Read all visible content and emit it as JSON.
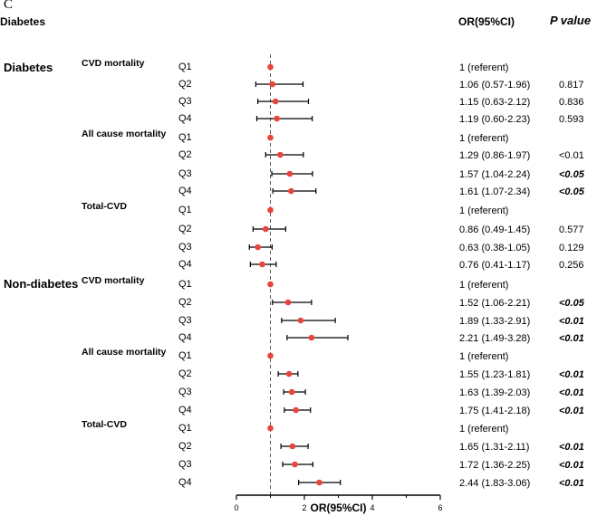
{
  "panel_letter": "C",
  "header": {
    "left_title": "Diabetes",
    "or_column": "OR(95%CI)",
    "p_column": "P value"
  },
  "chart_data": {
    "type": "forest",
    "xlabel": "OR(95%CI)",
    "xlim": [
      0,
      6
    ],
    "xticks": [
      0,
      2,
      4,
      6
    ],
    "reference_line": 1,
    "groups": [
      {
        "name": "Diabetes",
        "outcomes": [
          {
            "name": "CVD mortality",
            "rows": [
              {
                "q": "Q1",
                "or": 1.0,
                "lo": 1.0,
                "hi": 1.0,
                "label": "1 (referent)",
                "p": "",
                "p_bold": false
              },
              {
                "q": "Q2",
                "or": 1.06,
                "lo": 0.57,
                "hi": 1.96,
                "label": "1.06 (0.57-1.96)",
                "p": "0.817",
                "p_bold": false
              },
              {
                "q": "Q3",
                "or": 1.15,
                "lo": 0.63,
                "hi": 2.12,
                "label": "1.15 (0.63-2.12)",
                "p": "0.836",
                "p_bold": false
              },
              {
                "q": "Q4",
                "or": 1.19,
                "lo": 0.6,
                "hi": 2.23,
                "label": "1.19 (0.60-2.23)",
                "p": "0.593",
                "p_bold": false
              }
            ]
          },
          {
            "name": "All cause mortality",
            "rows": [
              {
                "q": "Q1",
                "or": 1.0,
                "lo": 1.0,
                "hi": 1.0,
                "label": "1 (referent)",
                "p": "",
                "p_bold": false
              },
              {
                "q": "Q2",
                "or": 1.29,
                "lo": 0.86,
                "hi": 1.97,
                "label": "1.29 (0.86-1.97)",
                "p": "<0.01",
                "p_bold": false
              },
              {
                "q": "Q3",
                "or": 1.57,
                "lo": 1.04,
                "hi": 2.24,
                "label": "1.57 (1.04-2.24)",
                "p": "<0.05",
                "p_bold": true
              },
              {
                "q": "Q4",
                "or": 1.61,
                "lo": 1.07,
                "hi": 2.34,
                "label": "1.61 (1.07-2.34)",
                "p": "<0.05",
                "p_bold": true
              }
            ]
          },
          {
            "name": "Total-CVD",
            "rows": [
              {
                "q": "Q1",
                "or": 1.0,
                "lo": 1.0,
                "hi": 1.0,
                "label": "1 (referent)",
                "p": "",
                "p_bold": false
              },
              {
                "q": "Q2",
                "or": 0.86,
                "lo": 0.49,
                "hi": 1.45,
                "label": "0.86 (0.49-1.45)",
                "p": "0.577",
                "p_bold": false
              },
              {
                "q": "Q3",
                "or": 0.63,
                "lo": 0.38,
                "hi": 1.05,
                "label": "0.63 (0.38-1.05)",
                "p": "0.129",
                "p_bold": false
              },
              {
                "q": "Q4",
                "or": 0.76,
                "lo": 0.41,
                "hi": 1.17,
                "label": "0.76 (0.41-1.17)",
                "p": "0.256",
                "p_bold": false
              }
            ]
          }
        ]
      },
      {
        "name": "Non-diabetes",
        "outcomes": [
          {
            "name": "CVD mortality",
            "rows": [
              {
                "q": "Q1",
                "or": 1.0,
                "lo": 1.0,
                "hi": 1.0,
                "label": "1 (referent)",
                "p": "",
                "p_bold": false
              },
              {
                "q": "Q2",
                "or": 1.52,
                "lo": 1.06,
                "hi": 2.21,
                "label": "1.52 (1.06-2.21)",
                "p": "<0.05",
                "p_bold": true
              },
              {
                "q": "Q3",
                "or": 1.89,
                "lo": 1.33,
                "hi": 2.91,
                "label": "1.89 (1.33-2.91)",
                "p": "<0.01",
                "p_bold": true
              },
              {
                "q": "Q4",
                "or": 2.21,
                "lo": 1.49,
                "hi": 3.28,
                "label": "2.21 (1.49-3.28)",
                "p": "<0.01",
                "p_bold": true
              }
            ]
          },
          {
            "name": "All cause mortality",
            "rows": [
              {
                "q": "Q1",
                "or": 1.0,
                "lo": 1.0,
                "hi": 1.0,
                "label": "1 (referent)",
                "p": "",
                "p_bold": false
              },
              {
                "q": "Q2",
                "or": 1.55,
                "lo": 1.23,
                "hi": 1.81,
                "label": "1.55 (1.23-1.81)",
                "p": "<0.01",
                "p_bold": true
              },
              {
                "q": "Q3",
                "or": 1.63,
                "lo": 1.39,
                "hi": 2.03,
                "label": "1.63 (1.39-2.03)",
                "p": "<0.01",
                "p_bold": true
              },
              {
                "q": "Q4",
                "or": 1.75,
                "lo": 1.41,
                "hi": 2.18,
                "label": "1.75 (1.41-2.18)",
                "p": "<0.01",
                "p_bold": true
              }
            ]
          },
          {
            "name": "Total-CVD",
            "rows": [
              {
                "q": "Q1",
                "or": 1.0,
                "lo": 1.0,
                "hi": 1.0,
                "label": "1 (referent)",
                "p": "",
                "p_bold": false
              },
              {
                "q": "Q2",
                "or": 1.65,
                "lo": 1.31,
                "hi": 2.11,
                "label": "1.65 (1.31-2.11)",
                "p": "<0.01",
                "p_bold": true
              },
              {
                "q": "Q3",
                "or": 1.72,
                "lo": 1.36,
                "hi": 2.25,
                "label": "1.72 (1.36-2.25)",
                "p": "<0.01",
                "p_bold": true
              },
              {
                "q": "Q4",
                "or": 2.44,
                "lo": 1.83,
                "hi": 3.06,
                "label": "2.44 (1.83-3.06)",
                "p": "<0.01",
                "p_bold": true
              }
            ]
          }
        ]
      }
    ]
  }
}
